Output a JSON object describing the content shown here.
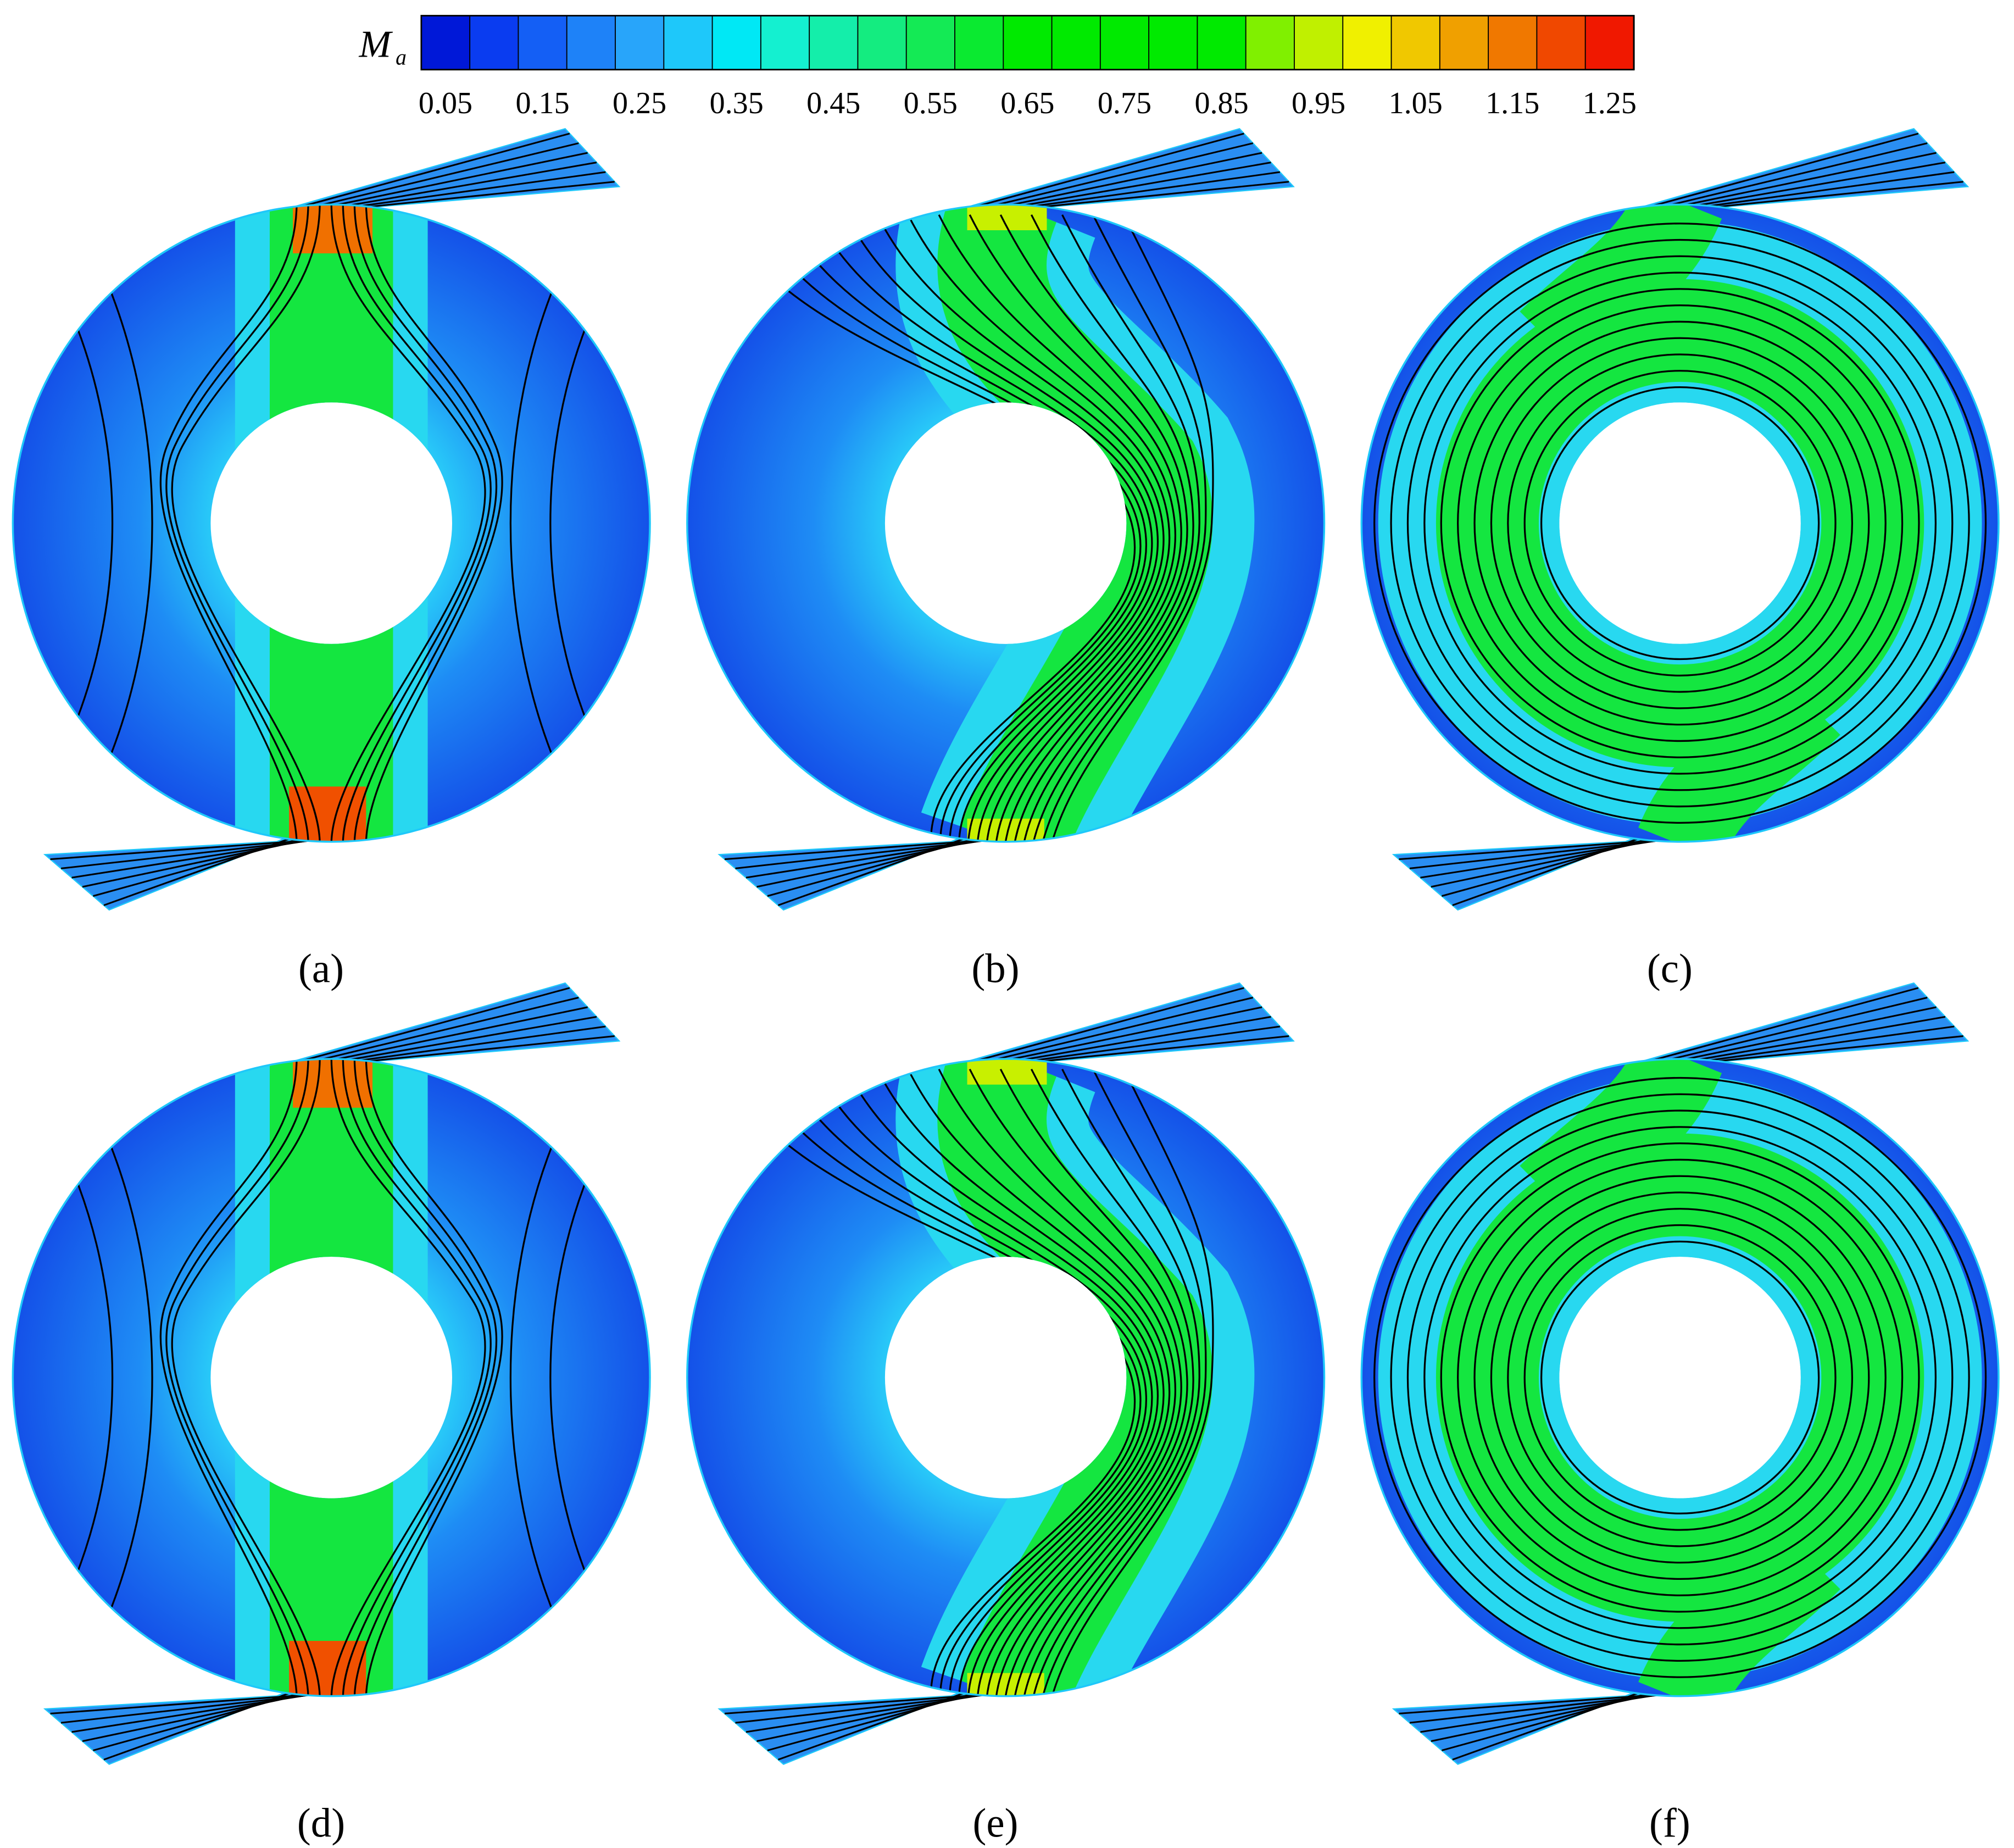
{
  "colorbar": {
    "symbol": "M",
    "subscript": "a",
    "ticks": [
      "0.05",
      "0.15",
      "0.25",
      "0.35",
      "0.45",
      "0.55",
      "0.65",
      "0.75",
      "0.85",
      "0.95",
      "1.05",
      "1.15",
      "1.25"
    ]
  },
  "panels": [
    {
      "label": "(a)"
    },
    {
      "label": "(b)"
    },
    {
      "label": "(c)"
    },
    {
      "label": "(d)"
    },
    {
      "label": "(e)"
    },
    {
      "label": "(f)"
    }
  ]
}
